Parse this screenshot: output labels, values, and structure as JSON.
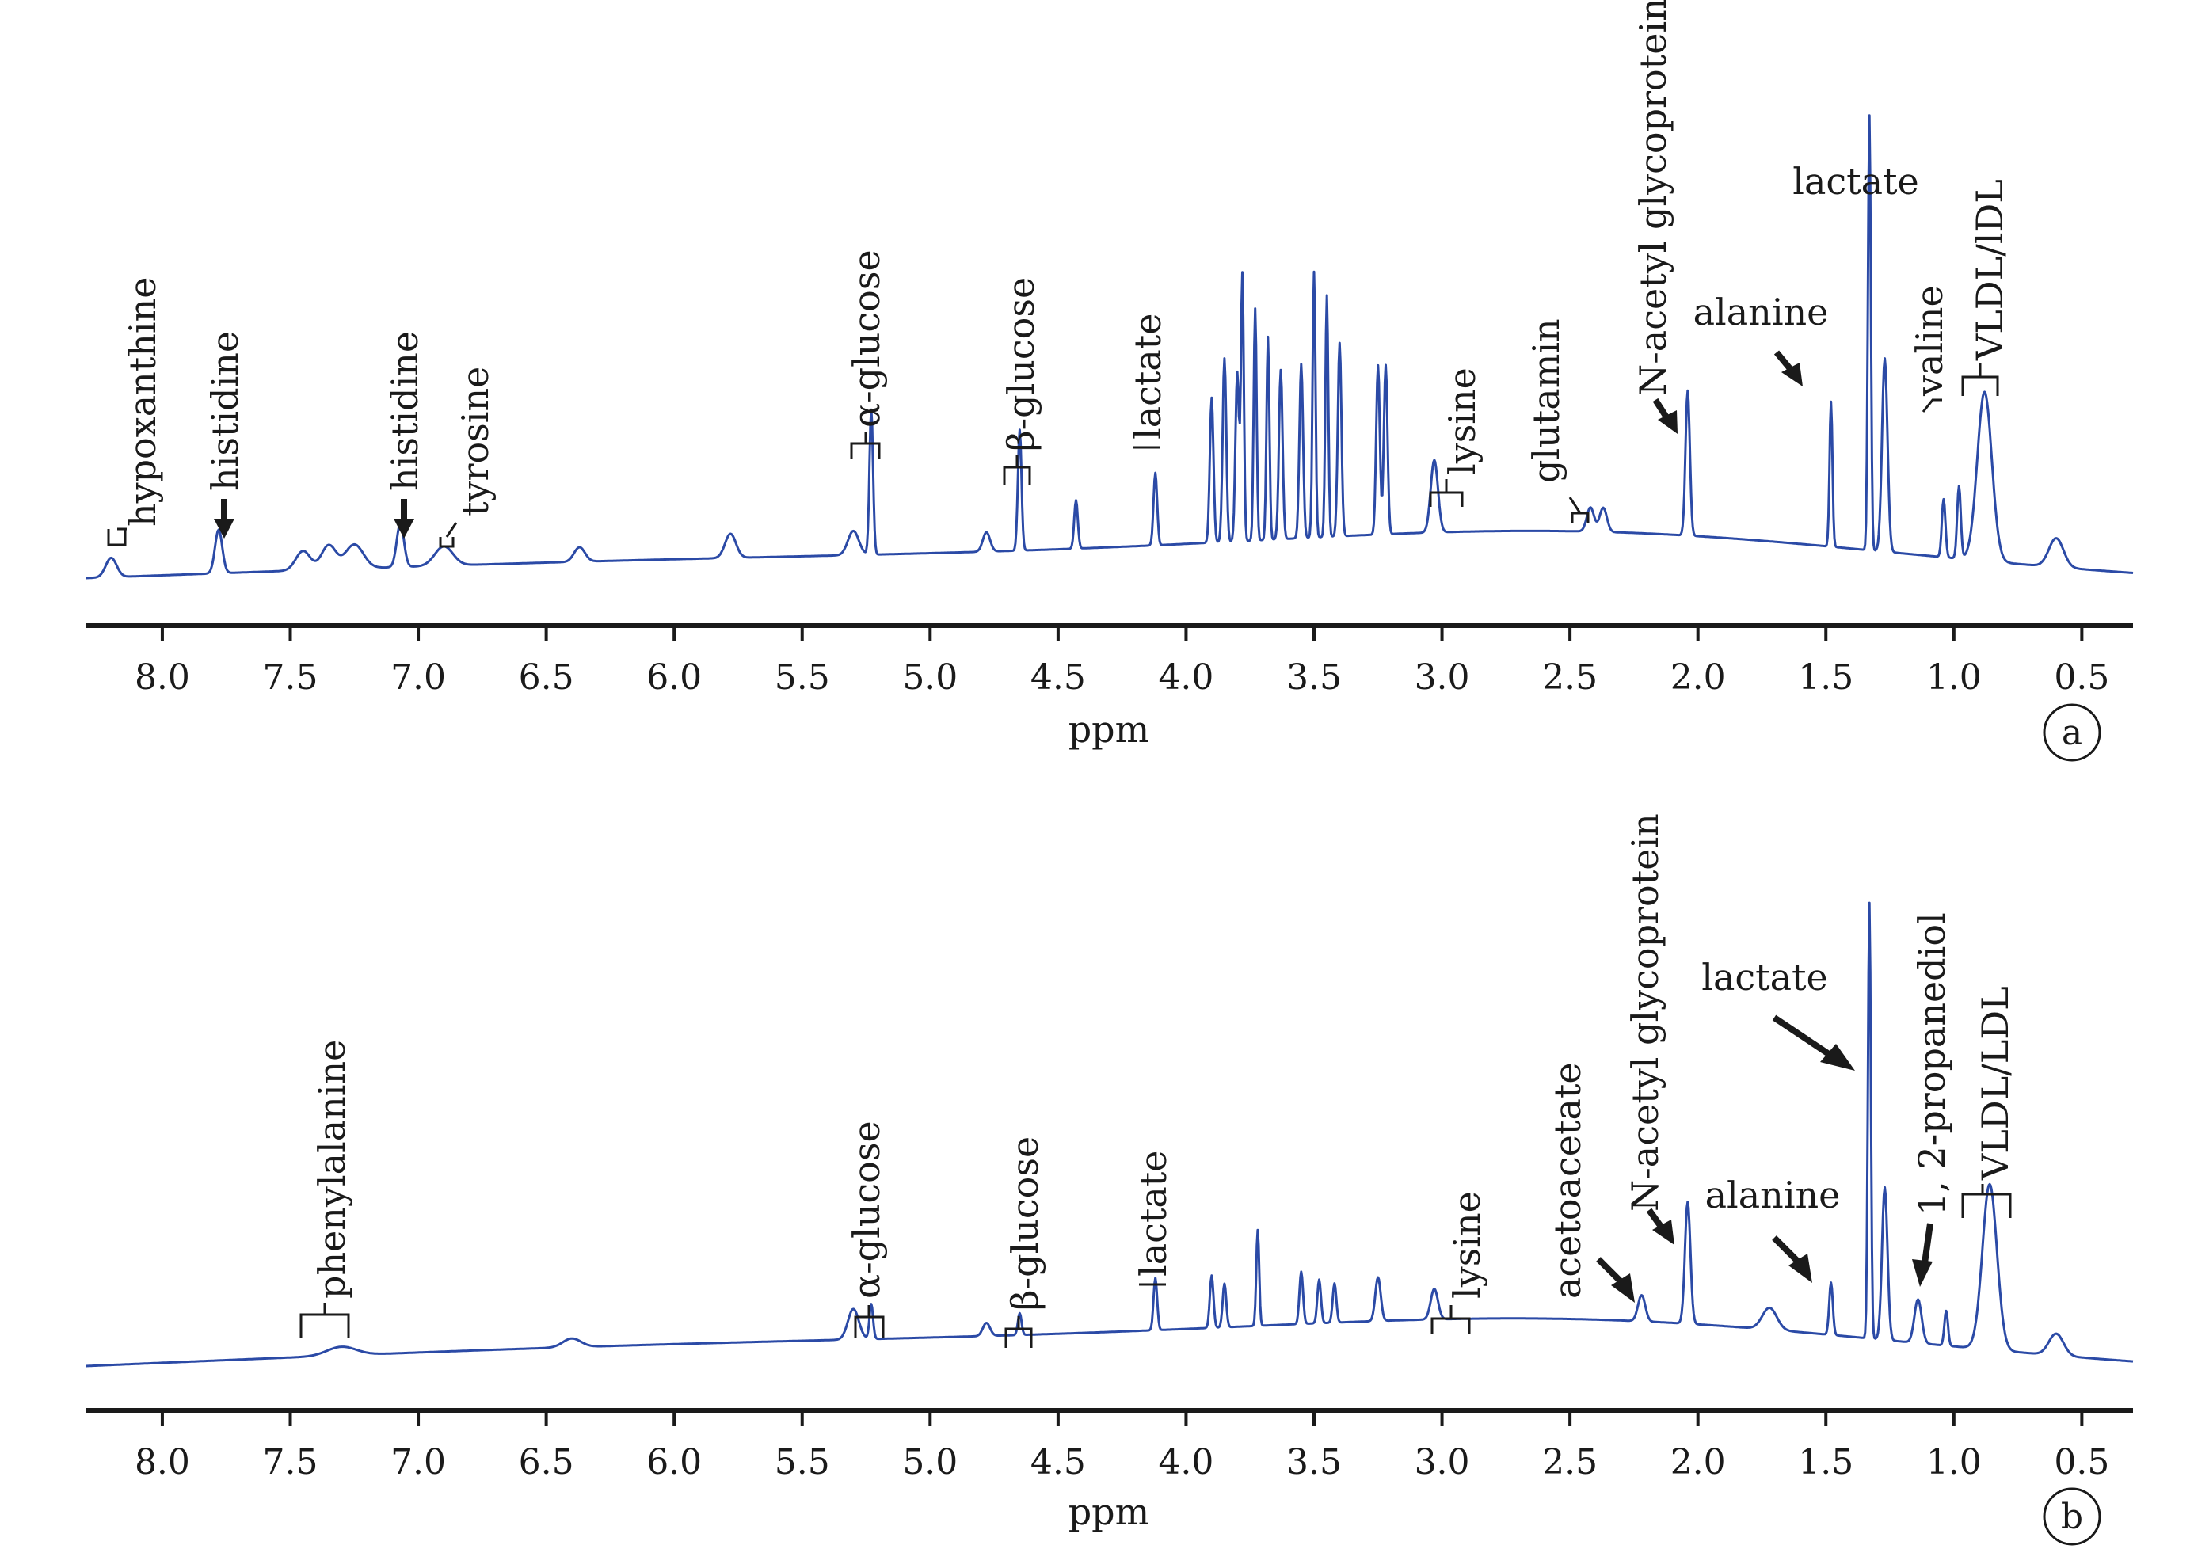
{
  "chart_data": [
    {
      "type": "line",
      "panel": "a",
      "xlabel": "ppm",
      "xlim": [
        8.3,
        0.3
      ],
      "x_reversed": true,
      "ticks": [
        "8.0",
        "7.5",
        "7.0",
        "6.5",
        "6.0",
        "5.5",
        "5.0",
        "4.5",
        "4.0",
        "3.5",
        "3.0",
        "2.5",
        "2.0",
        "1.5",
        "1.0",
        "0.5"
      ],
      "peaks": [
        {
          "x": 8.2,
          "h": 0.04,
          "w": 0.03
        },
        {
          "x": 7.78,
          "h": 0.09,
          "w": 0.02
        },
        {
          "x": 7.45,
          "h": 0.04,
          "w": 0.04
        },
        {
          "x": 7.35,
          "h": 0.05,
          "w": 0.04
        },
        {
          "x": 7.25,
          "h": 0.05,
          "w": 0.05
        },
        {
          "x": 7.07,
          "h": 0.09,
          "w": 0.02
        },
        {
          "x": 6.9,
          "h": 0.04,
          "w": 0.05
        },
        {
          "x": 6.37,
          "h": 0.03,
          "w": 0.03
        },
        {
          "x": 5.78,
          "h": 0.05,
          "w": 0.03
        },
        {
          "x": 5.3,
          "h": 0.05,
          "w": 0.03
        },
        {
          "x": 5.23,
          "h": 0.3,
          "w": 0.01
        },
        {
          "x": 4.78,
          "h": 0.04,
          "w": 0.02
        },
        {
          "x": 4.65,
          "h": 0.25,
          "w": 0.01
        },
        {
          "x": 4.43,
          "h": 0.1,
          "w": 0.01
        },
        {
          "x": 4.12,
          "h": 0.15,
          "w": 0.01
        },
        {
          "x": 3.9,
          "h": 0.3,
          "w": 0.01
        },
        {
          "x": 3.85,
          "h": 0.38,
          "w": 0.01
        },
        {
          "x": 3.8,
          "h": 0.35,
          "w": 0.01
        },
        {
          "x": 3.78,
          "h": 0.55,
          "w": 0.008
        },
        {
          "x": 3.73,
          "h": 0.48,
          "w": 0.008
        },
        {
          "x": 3.68,
          "h": 0.42,
          "w": 0.008
        },
        {
          "x": 3.63,
          "h": 0.35,
          "w": 0.01
        },
        {
          "x": 3.55,
          "h": 0.36,
          "w": 0.01
        },
        {
          "x": 3.5,
          "h": 0.55,
          "w": 0.008
        },
        {
          "x": 3.45,
          "h": 0.5,
          "w": 0.008
        },
        {
          "x": 3.4,
          "h": 0.4,
          "w": 0.01
        },
        {
          "x": 3.25,
          "h": 0.35,
          "w": 0.01
        },
        {
          "x": 3.22,
          "h": 0.35,
          "w": 0.01
        },
        {
          "x": 3.03,
          "h": 0.15,
          "w": 0.02
        },
        {
          "x": 2.42,
          "h": 0.05,
          "w": 0.02
        },
        {
          "x": 2.37,
          "h": 0.05,
          "w": 0.02
        },
        {
          "x": 2.04,
          "h": 0.3,
          "w": 0.012
        },
        {
          "x": 1.48,
          "h": 0.3,
          "w": 0.008
        },
        {
          "x": 1.33,
          "h": 0.9,
          "w": 0.008
        },
        {
          "x": 1.27,
          "h": 0.4,
          "w": 0.015
        },
        {
          "x": 1.04,
          "h": 0.12,
          "w": 0.01
        },
        {
          "x": 0.98,
          "h": 0.15,
          "w": 0.01
        },
        {
          "x": 0.88,
          "h": 0.35,
          "w": 0.04
        },
        {
          "x": 0.6,
          "h": 0.06,
          "w": 0.04
        }
      ],
      "annotations": [
        {
          "label": "hypoxanthine",
          "x": 8.2
        },
        {
          "label": "histidine",
          "x": 7.78
        },
        {
          "label": "histidine",
          "x": 7.07
        },
        {
          "label": "tyrosine",
          "x": 6.9
        },
        {
          "label": "α-glucose",
          "x": 5.23
        },
        {
          "label": "β-glucose",
          "x": 4.65
        },
        {
          "label": "lactate",
          "x": 4.12
        },
        {
          "label": "lysine",
          "x": 3.0
        },
        {
          "label": "glutamin",
          "x": 2.4
        },
        {
          "label": "N-acetyl glycoprotein",
          "x": 2.04
        },
        {
          "label": "alanine",
          "x": 1.48
        },
        {
          "label": "lactate",
          "x": 1.33
        },
        {
          "label": "valine",
          "x": 1.02
        },
        {
          "label": "VLDL/lDL",
          "x": 0.88
        }
      ]
    },
    {
      "type": "line",
      "panel": "b",
      "xlabel": "ppm",
      "xlim": [
        8.3,
        0.3
      ],
      "x_reversed": true,
      "ticks": [
        "8.0",
        "7.5",
        "7.0",
        "6.5",
        "6.0",
        "5.5",
        "5.0",
        "4.5",
        "4.0",
        "3.5",
        "3.0",
        "2.5",
        "2.0",
        "1.5",
        "1.0",
        "0.5"
      ],
      "peaks": [
        {
          "x": 7.3,
          "h": 0.02,
          "w": 0.08
        },
        {
          "x": 6.4,
          "h": 0.02,
          "w": 0.05
        },
        {
          "x": 5.3,
          "h": 0.07,
          "w": 0.03
        },
        {
          "x": 5.23,
          "h": 0.08,
          "w": 0.01
        },
        {
          "x": 4.78,
          "h": 0.03,
          "w": 0.02
        },
        {
          "x": 4.65,
          "h": 0.05,
          "w": 0.01
        },
        {
          "x": 4.12,
          "h": 0.12,
          "w": 0.01
        },
        {
          "x": 3.9,
          "h": 0.12,
          "w": 0.01
        },
        {
          "x": 3.85,
          "h": 0.1,
          "w": 0.01
        },
        {
          "x": 3.72,
          "h": 0.22,
          "w": 0.008
        },
        {
          "x": 3.55,
          "h": 0.12,
          "w": 0.01
        },
        {
          "x": 3.48,
          "h": 0.1,
          "w": 0.01
        },
        {
          "x": 3.42,
          "h": 0.09,
          "w": 0.01
        },
        {
          "x": 3.25,
          "h": 0.1,
          "w": 0.015
        },
        {
          "x": 3.03,
          "h": 0.07,
          "w": 0.02
        },
        {
          "x": 2.22,
          "h": 0.06,
          "w": 0.02
        },
        {
          "x": 2.04,
          "h": 0.28,
          "w": 0.015
        },
        {
          "x": 1.72,
          "h": 0.05,
          "w": 0.04
        },
        {
          "x": 1.48,
          "h": 0.12,
          "w": 0.01
        },
        {
          "x": 1.33,
          "h": 1.0,
          "w": 0.008
        },
        {
          "x": 1.27,
          "h": 0.35,
          "w": 0.015
        },
        {
          "x": 1.14,
          "h": 0.1,
          "w": 0.02
        },
        {
          "x": 1.03,
          "h": 0.08,
          "w": 0.01
        },
        {
          "x": 0.86,
          "h": 0.38,
          "w": 0.04
        },
        {
          "x": 0.6,
          "h": 0.05,
          "w": 0.04
        }
      ],
      "annotations": [
        {
          "label": "phenylalanine",
          "x": 7.35
        },
        {
          "label": "α-glucose",
          "x": 5.23
        },
        {
          "label": "β-glucose",
          "x": 4.65
        },
        {
          "label": "lactate",
          "x": 4.12
        },
        {
          "label": "lysine",
          "x": 3.0
        },
        {
          "label": "acetoacetate",
          "x": 2.22
        },
        {
          "label": "N-acetyl glycoprotein",
          "x": 2.04
        },
        {
          "label": "alanine",
          "x": 1.48
        },
        {
          "label": "lactate",
          "x": 1.33
        },
        {
          "label": "1, 2-propanediol",
          "x": 1.14
        },
        {
          "label": "VLDL/LDL",
          "x": 0.86
        }
      ]
    }
  ]
}
